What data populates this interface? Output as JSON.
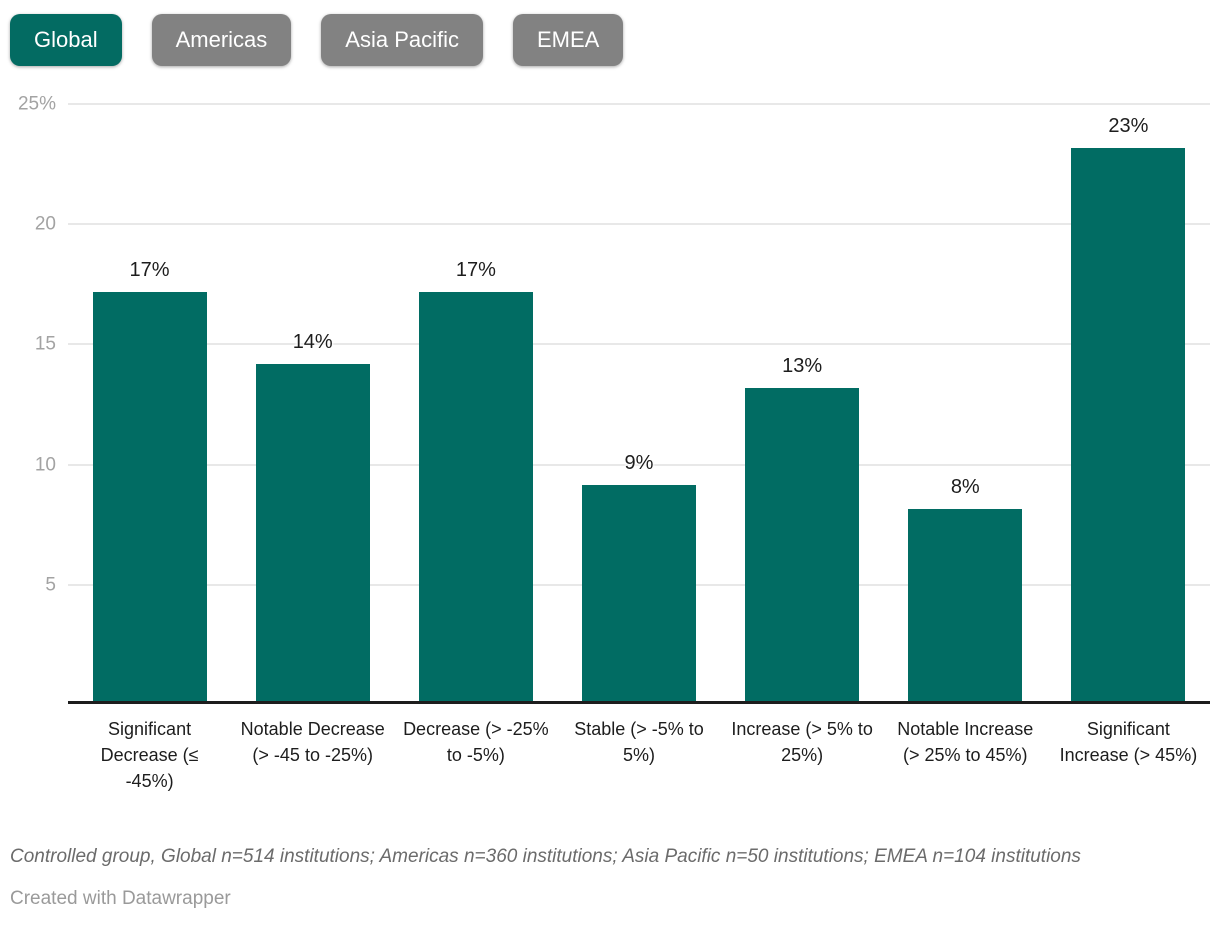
{
  "tabs": {
    "items": [
      {
        "label": "Global",
        "active": true
      },
      {
        "label": "Americas",
        "active": false
      },
      {
        "label": "Asia Pacific",
        "active": false
      },
      {
        "label": "EMEA",
        "active": false
      }
    ]
  },
  "chart_data": {
    "type": "bar",
    "categories": [
      "Significant Decrease (≤ -45%)",
      "Notable Decrease (> -45 to -25%)",
      "Decrease (> -25% to -5%)",
      "Stable (> -5% to 5%)",
      "Increase (> 5% to 25%)",
      "Notable Increase (> 25% to 45%)",
      "Significant Increase (> 45%)"
    ],
    "values": [
      17,
      14,
      17,
      9,
      13,
      8,
      23
    ],
    "value_labels": [
      "17%",
      "14%",
      "17%",
      "9%",
      "13%",
      "8%",
      "23%"
    ],
    "title": "",
    "xlabel": "",
    "ylabel": "",
    "ylim": [
      0,
      25
    ],
    "grid": true,
    "legend": "none",
    "y_ticks": [
      {
        "value": 25,
        "label": "25%"
      },
      {
        "value": 20,
        "label": "20"
      },
      {
        "value": 15,
        "label": "15"
      },
      {
        "value": 10,
        "label": "10"
      },
      {
        "value": 5,
        "label": "5"
      }
    ],
    "bar_color": "#016c63"
  },
  "colors": {
    "accent_teal": "#036b62",
    "tab_inactive_gray": "#828282",
    "axis_line": "#1d1d1d",
    "gridline": "#e8e8e8",
    "tick_text": "#a3a3a3"
  },
  "footer": {
    "notes": "Controlled group, Global n=514 institutions; Americas n=360 institutions; Asia Pacific n=50 institutions; EMEA n=104 institutions",
    "attribution": "Created with Datawrapper"
  }
}
